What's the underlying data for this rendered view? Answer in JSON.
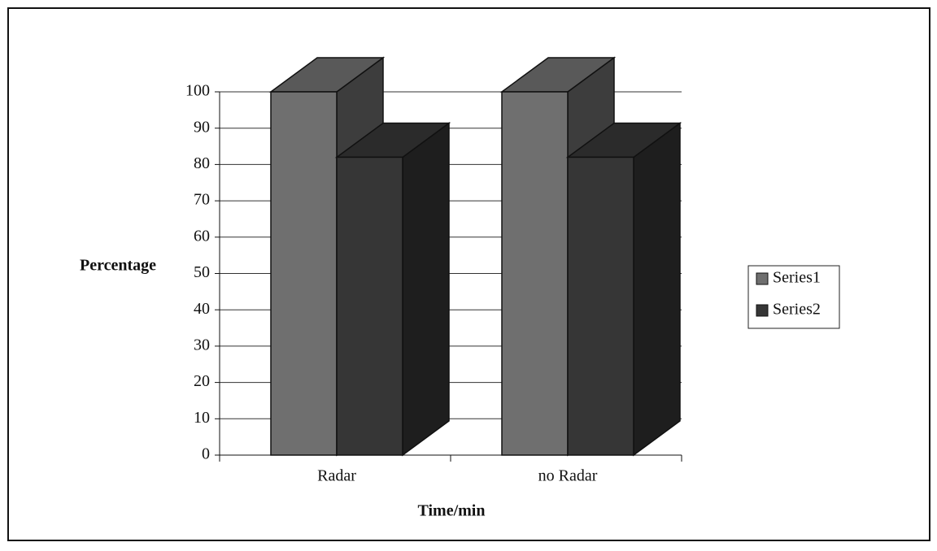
{
  "chart_data": {
    "type": "bar",
    "x_label": "Time/min",
    "y_label": "Percentage",
    "categories": [
      "Radar",
      "no Radar"
    ],
    "series": [
      {
        "name": "Series1",
        "color": "#6f6f6f",
        "values": [
          100,
          100
        ]
      },
      {
        "name": "Series2",
        "color": "#363636",
        "values": [
          82,
          82
        ]
      }
    ],
    "ylim": [
      0,
      100
    ],
    "yticks": [
      0,
      10,
      20,
      30,
      40,
      50,
      60,
      70,
      80,
      90,
      100
    ],
    "grid": true,
    "legend": "right"
  }
}
